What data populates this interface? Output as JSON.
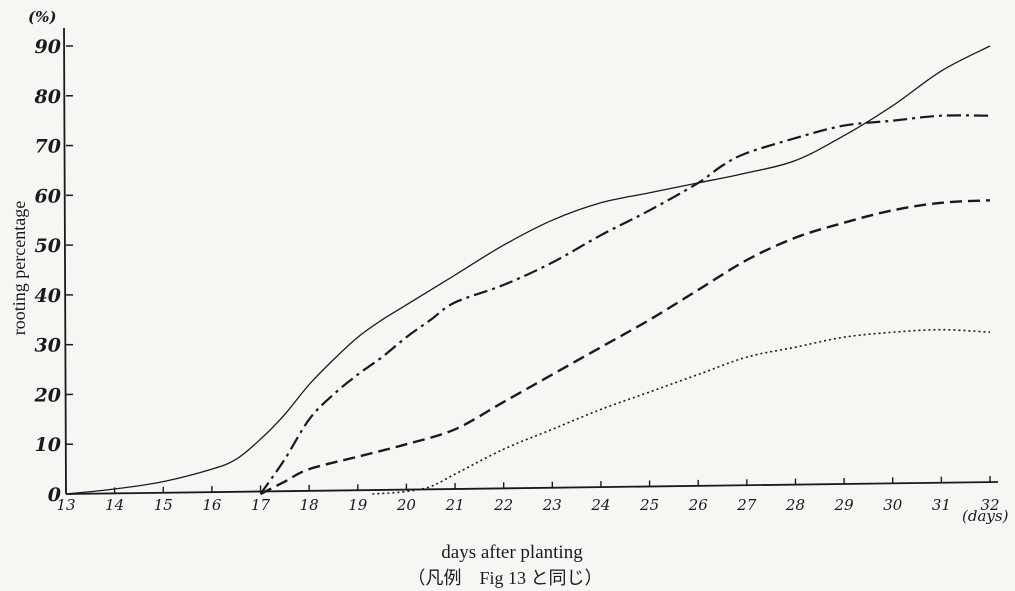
{
  "chart_data": {
    "type": "line",
    "title": "",
    "xlabel": "days after planting",
    "ylabel": "rooting percentage",
    "x_unit": "(days)",
    "y_unit": "(%)",
    "caption": "（凡例　Fig 13 と同じ）",
    "xlim": [
      13,
      32
    ],
    "ylim": [
      0,
      90
    ],
    "x_ticks": [
      13,
      14,
      15,
      16,
      17,
      18,
      19,
      20,
      21,
      22,
      23,
      24,
      25,
      26,
      27,
      28,
      29,
      30,
      31,
      32
    ],
    "y_ticks": [
      0,
      10,
      20,
      30,
      40,
      50,
      60,
      70,
      80,
      90
    ],
    "x_tick_labels": [
      "13",
      "14",
      "15",
      "16",
      "17",
      "18",
      "19",
      "20",
      "21",
      "22",
      "23",
      "24",
      "25",
      "26",
      "27",
      "28",
      "29",
      "30",
      "31",
      "32"
    ],
    "y_tick_labels": [
      "0",
      "10",
      "20",
      "30",
      "40",
      "50",
      "60",
      "70",
      "80",
      "90"
    ],
    "grid": false,
    "legend": "none",
    "series": [
      {
        "style": "solid",
        "color": "#1a1a1a",
        "x": [
          13,
          14,
          15,
          16,
          16.5,
          17,
          17.5,
          18,
          18.5,
          19,
          19.5,
          20,
          21,
          22,
          23,
          24,
          25,
          26,
          27,
          28,
          29,
          30,
          31,
          32
        ],
        "y": [
          0,
          1,
          2.5,
          5,
          7,
          11,
          16,
          22,
          27,
          31.5,
          35,
          38,
          44,
          50,
          55,
          58.5,
          60.5,
          62.5,
          64.5,
          67,
          72,
          78,
          85,
          90
        ]
      },
      {
        "style": "dash-dot",
        "color": "#1a1a1a",
        "x": [
          17,
          17.5,
          18,
          18.5,
          19,
          19.5,
          20,
          20.5,
          21,
          22,
          23,
          24,
          25,
          26,
          26.5,
          27,
          28,
          29,
          30,
          31,
          32
        ],
        "y": [
          0,
          7,
          15,
          20,
          24,
          27.5,
          31.5,
          35,
          38.5,
          42,
          46.5,
          52,
          57,
          62.5,
          66,
          68.5,
          71.5,
          74,
          75,
          76,
          76
        ]
      },
      {
        "style": "dashed",
        "color": "#1a1a1a",
        "x": [
          17,
          17.5,
          18,
          19,
          20,
          21,
          22,
          23,
          24,
          25,
          26,
          27,
          28,
          29,
          30,
          31,
          32
        ],
        "y": [
          0,
          2.5,
          5,
          7.5,
          10,
          13,
          18.5,
          24,
          29.5,
          35,
          41,
          47,
          51.5,
          54.5,
          57,
          58.5,
          59
        ]
      },
      {
        "style": "dotted",
        "color": "#1a1a1a",
        "x": [
          19.3,
          20,
          20.5,
          21,
          22,
          23,
          24,
          25,
          26,
          27,
          28,
          29,
          30,
          31,
          32
        ],
        "y": [
          0,
          0.5,
          1.5,
          4,
          9,
          13,
          17,
          20.5,
          24,
          27.5,
          29.5,
          31.5,
          32.5,
          33,
          32.5
        ]
      }
    ]
  }
}
